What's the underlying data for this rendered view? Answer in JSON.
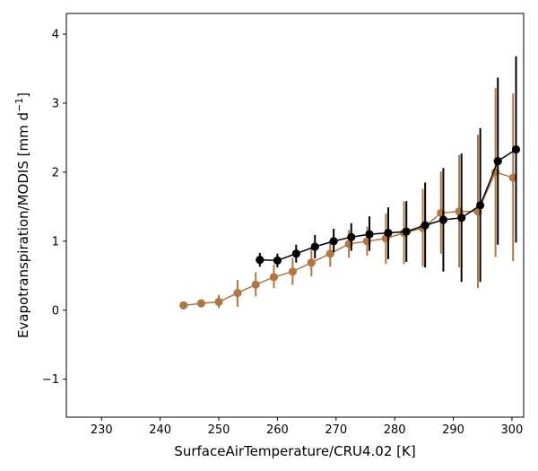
{
  "chart_data": {
    "type": "line",
    "xlabel": "SurfaceAirTemperature/CRU4.02 [K]",
    "ylabel_main": "Evapotranspiration/MODIS [mm d",
    "ylabel_sup": "−1",
    "ylabel_end": "]",
    "xlim": [
      224,
      302
    ],
    "ylim": [
      -1.55,
      4.3
    ],
    "xticks": [
      230,
      240,
      250,
      260,
      270,
      280,
      290,
      300
    ],
    "yticks": [
      -1,
      0,
      1,
      2,
      3,
      4
    ],
    "ytick_labels": [
      "−1",
      "0",
      "1",
      "2",
      "3",
      "4"
    ],
    "series": [
      {
        "color": "#b07840",
        "points": [
          {
            "x": 244.0,
            "y": 0.07,
            "lo": 0.07,
            "hi": 0.07
          },
          {
            "x": 247.0,
            "y": 0.1,
            "lo": 0.1,
            "hi": 0.1
          },
          {
            "x": 250.0,
            "y": 0.12,
            "lo": 0.03,
            "hi": 0.22
          },
          {
            "x": 253.2,
            "y": 0.25,
            "lo": 0.05,
            "hi": 0.44
          },
          {
            "x": 256.3,
            "y": 0.37,
            "lo": 0.2,
            "hi": 0.55
          },
          {
            "x": 259.4,
            "y": 0.48,
            "lo": 0.32,
            "hi": 0.66
          },
          {
            "x": 262.6,
            "y": 0.56,
            "lo": 0.37,
            "hi": 0.76
          },
          {
            "x": 265.8,
            "y": 0.69,
            "lo": 0.49,
            "hi": 0.9
          },
          {
            "x": 269.0,
            "y": 0.82,
            "lo": 0.63,
            "hi": 1.01
          },
          {
            "x": 272.2,
            "y": 0.96,
            "lo": 0.76,
            "hi": 1.16
          },
          {
            "x": 275.3,
            "y": 1.0,
            "lo": 0.79,
            "hi": 1.21
          },
          {
            "x": 278.5,
            "y": 1.04,
            "lo": 0.67,
            "hi": 1.4
          },
          {
            "x": 281.6,
            "y": 1.12,
            "lo": 0.67,
            "hi": 1.58
          },
          {
            "x": 284.8,
            "y": 1.19,
            "lo": 0.63,
            "hi": 1.76
          },
          {
            "x": 287.9,
            "y": 1.41,
            "lo": 0.82,
            "hi": 2.01
          },
          {
            "x": 291.0,
            "y": 1.43,
            "lo": 0.62,
            "hi": 2.25
          },
          {
            "x": 294.2,
            "y": 1.43,
            "lo": 0.32,
            "hi": 2.54
          },
          {
            "x": 297.2,
            "y": 2.0,
            "lo": 0.77,
            "hi": 3.22
          },
          {
            "x": 300.2,
            "y": 1.92,
            "lo": 0.71,
            "hi": 3.14
          }
        ]
      },
      {
        "color": "#000000",
        "points": [
          {
            "x": 257.0,
            "y": 0.73,
            "lo": 0.63,
            "hi": 0.83
          },
          {
            "x": 260.0,
            "y": 0.72,
            "lo": 0.62,
            "hi": 0.82
          },
          {
            "x": 263.2,
            "y": 0.82,
            "lo": 0.69,
            "hi": 0.95
          },
          {
            "x": 266.4,
            "y": 0.92,
            "lo": 0.75,
            "hi": 1.09
          },
          {
            "x": 269.6,
            "y": 1.0,
            "lo": 0.84,
            "hi": 1.18
          },
          {
            "x": 272.6,
            "y": 1.06,
            "lo": 0.86,
            "hi": 1.26
          },
          {
            "x": 275.7,
            "y": 1.1,
            "lo": 0.86,
            "hi": 1.36
          },
          {
            "x": 278.9,
            "y": 1.12,
            "lo": 0.74,
            "hi": 1.49
          },
          {
            "x": 282.0,
            "y": 1.14,
            "lo": 0.7,
            "hi": 1.58
          },
          {
            "x": 285.2,
            "y": 1.23,
            "lo": 0.62,
            "hi": 1.85
          },
          {
            "x": 288.3,
            "y": 1.31,
            "lo": 0.56,
            "hi": 2.06
          },
          {
            "x": 291.4,
            "y": 1.34,
            "lo": 0.41,
            "hi": 2.27
          },
          {
            "x": 294.6,
            "y": 1.52,
            "lo": 0.41,
            "hi": 2.64
          },
          {
            "x": 297.6,
            "y": 2.16,
            "lo": 0.95,
            "hi": 3.37
          },
          {
            "x": 300.7,
            "y": 2.33,
            "lo": 0.98,
            "hi": 3.68
          }
        ]
      }
    ]
  }
}
